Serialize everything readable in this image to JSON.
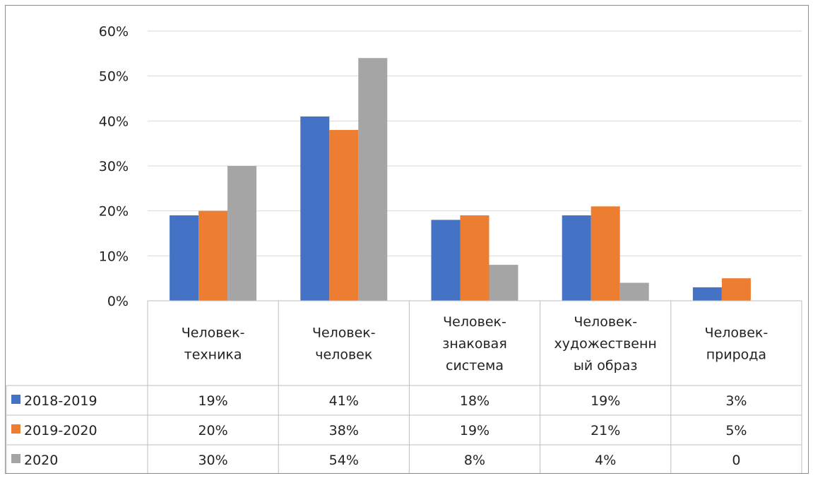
{
  "chart_data": {
    "type": "bar",
    "categories": [
      [
        "Человек-",
        "техника"
      ],
      [
        "Человек-",
        "человек"
      ],
      [
        "Человек-",
        "знаковая",
        "система"
      ],
      [
        "Человек-",
        "художественн",
        "ый образ"
      ],
      [
        "Человек-",
        "природа"
      ]
    ],
    "series": [
      {
        "name": "2018-2019",
        "color": "#4472c4",
        "values": [
          19,
          41,
          18,
          19,
          3
        ],
        "labels": [
          "19%",
          "41%",
          "18%",
          "19%",
          "3%"
        ]
      },
      {
        "name": "2019-2020",
        "color": "#ed7d31",
        "values": [
          20,
          38,
          19,
          21,
          5
        ],
        "labels": [
          "20%",
          "38%",
          "19%",
          "21%",
          "5%"
        ]
      },
      {
        "name": "2020",
        "color": "#a5a5a5",
        "values": [
          30,
          54,
          8,
          4,
          0
        ],
        "labels": [
          "30%",
          "54%",
          "8%",
          "4%",
          "0"
        ]
      }
    ],
    "yticks": [
      "0%",
      "10%",
      "20%",
      "30%",
      "40%",
      "50%",
      "60%"
    ],
    "ylim": [
      0,
      60
    ],
    "grid": true,
    "legend": "data-table"
  }
}
